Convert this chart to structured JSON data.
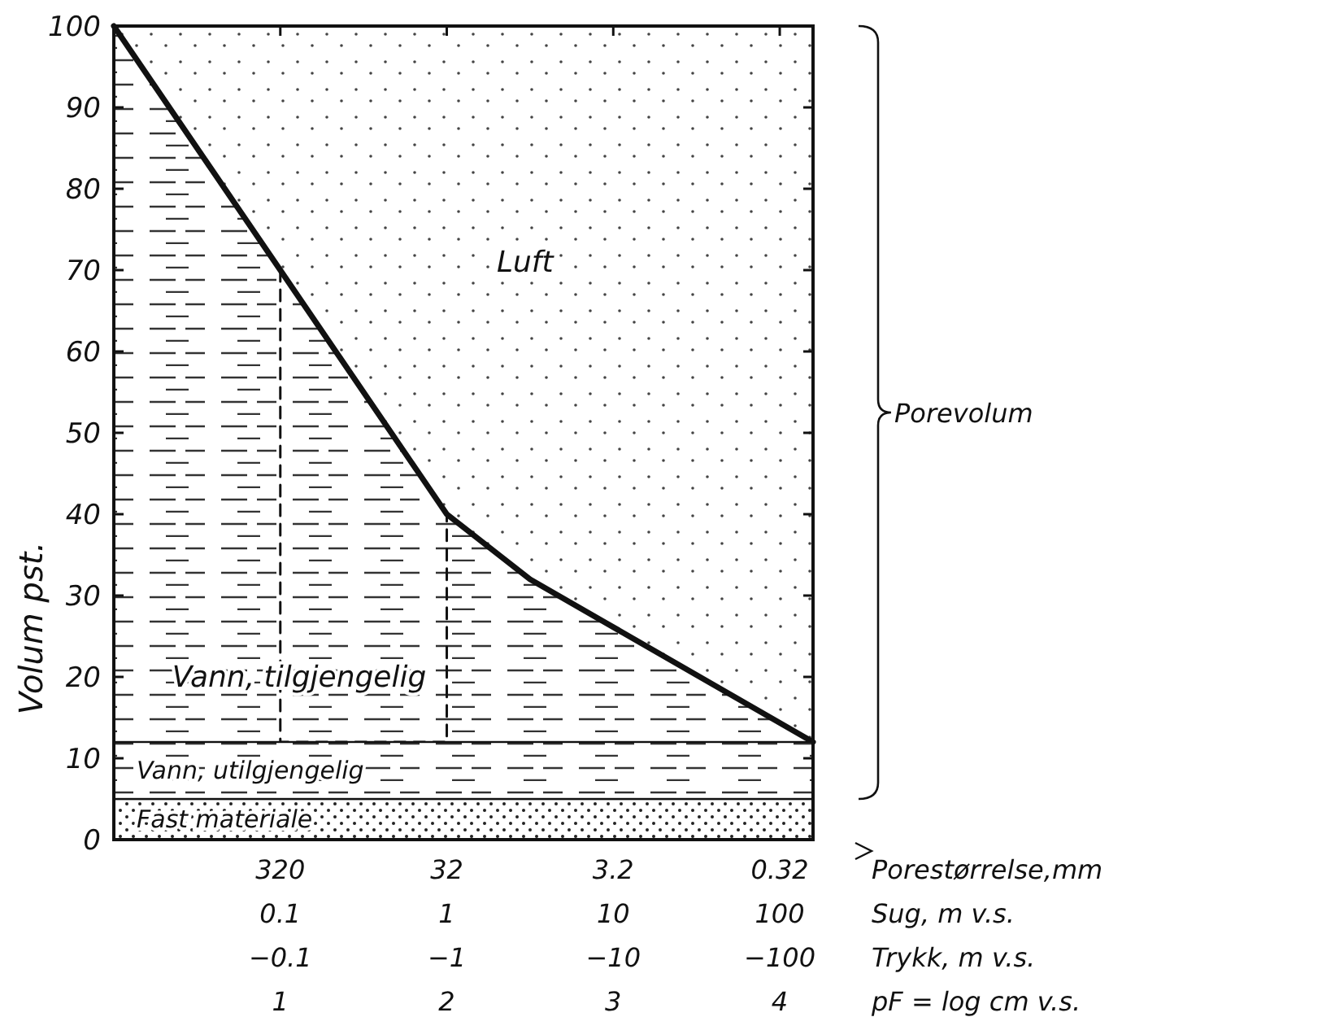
{
  "chart_data": {
    "type": "line",
    "ylabel": "Volum pst.",
    "xlabel": "pF = log cm v.s.",
    "x2label": "Sug, m v.s.",
    "xlim": [
      0,
      4.2
    ],
    "xticks": [
      1,
      2,
      3,
      4
    ],
    "x2lim": [
      0.01,
      158.5
    ],
    "x2ticks": [
      0.1,
      1,
      10,
      100
    ],
    "log": "x2",
    "ylim": [
      0,
      100
    ],
    "yticks": [
      0,
      10,
      20,
      30,
      40,
      50,
      60,
      70,
      80,
      90,
      100
    ],
    "grid": false,
    "marker": "none",
    "series": [
      {
        "type": "area",
        "color": "#111111",
        "x": [
          0,
          1,
          2,
          2.5,
          4.2
        ],
        "values": [
          100,
          70,
          40,
          32,
          12
        ],
        "line_style": "solid"
      },
      {
        "color": "#111111",
        "x": [
          1,
          1,
          2,
          2
        ],
        "values": [
          70,
          12,
          12,
          40
        ],
        "line_style": "dashed"
      }
    ],
    "bands": [
      {
        "axis": "y",
        "from": 0,
        "to": 5,
        "label": "Fast materiale",
        "color": "#111111"
      },
      {
        "axis": "y",
        "from": 5,
        "to": 12,
        "label": "Vann, utilgjengelig",
        "color": "#111111"
      }
    ],
    "annotations": [
      "Luft",
      "Vann, tilgjengelig",
      "Porevolum",
      "Porestørrelse,mm",
      "320",
      "32",
      "3.2",
      "0.32",
      "Trykk, m v.s.",
      "−0.1",
      "−1",
      "−10",
      "−100"
    ]
  }
}
